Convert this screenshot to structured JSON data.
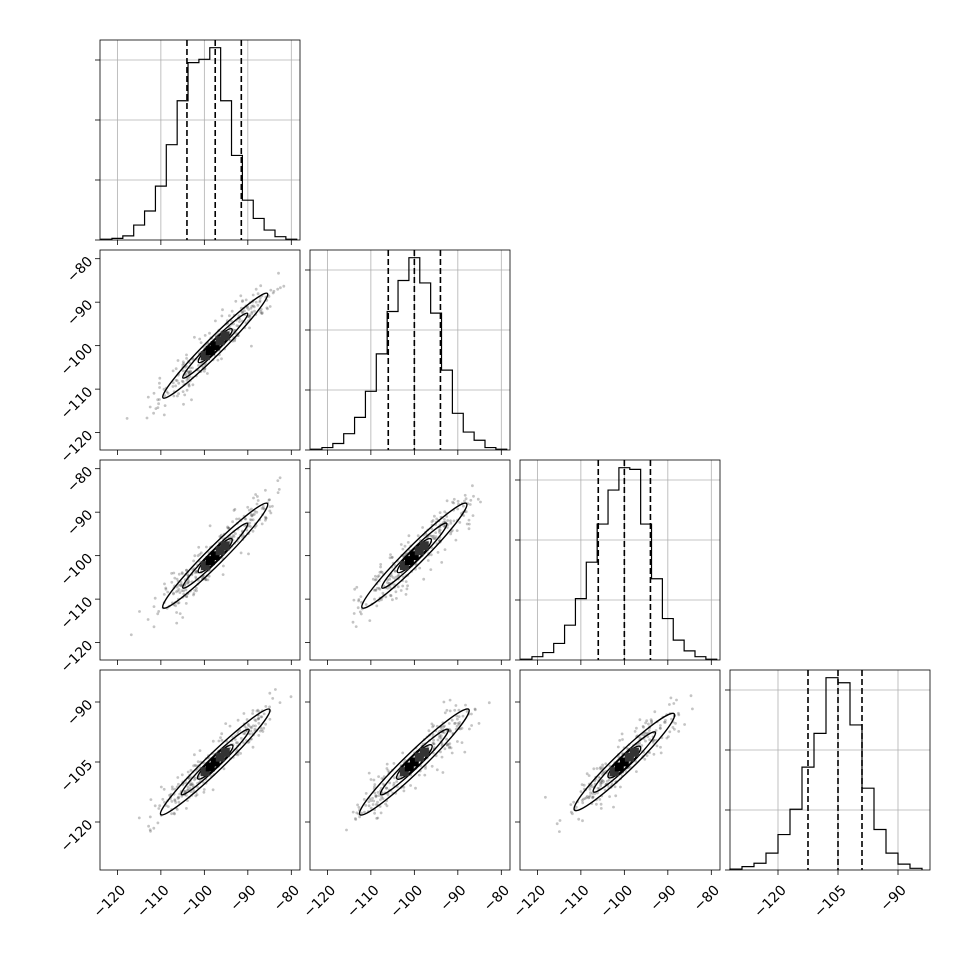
{
  "chart_data": {
    "type": "corner",
    "dimensions": 4,
    "grid": true,
    "diagonal": [
      {
        "range": [
          -124,
          -78
        ],
        "bins": [
          -122.5,
          -120,
          -117.5,
          -115,
          -112.5,
          -110,
          -107.5,
          -105,
          -102.5,
          -100,
          -97.5,
          -95,
          -92.5,
          -90,
          -87.5,
          -85,
          -82.5,
          -80
        ],
        "counts": [
          1,
          2,
          5,
          18,
          35,
          65,
          115,
          168,
          214,
          218,
          232,
          168,
          102,
          48,
          26,
          12,
          4,
          1
        ],
        "quantiles": [
          -104,
          -97.5,
          -91.5
        ],
        "xlim": [
          -124,
          -78
        ]
      },
      {
        "range": [
          -124,
          -78
        ],
        "bins": [
          -122.5,
          -120,
          -117.5,
          -115,
          -112.5,
          -110,
          -107.5,
          -105,
          -102.5,
          -100,
          -97.5,
          -95,
          -92.5,
          -90,
          -87.5,
          -85,
          -82.5,
          -80
        ],
        "counts": [
          1,
          3,
          8,
          20,
          40,
          72,
          118,
          170,
          208,
          236,
          205,
          168,
          98,
          45,
          22,
          12,
          3,
          1
        ],
        "quantiles": [
          -106,
          -100,
          -94
        ],
        "xlim": [
          -124,
          -78
        ]
      },
      {
        "range": [
          -124,
          -78
        ],
        "bins": [
          -122.5,
          -120,
          -117.5,
          -115,
          -112.5,
          -110,
          -107.5,
          -105,
          -102.5,
          -100,
          -97.5,
          -95,
          -92.5,
          -90,
          -87.5,
          -85,
          -82.5,
          -80
        ],
        "counts": [
          1,
          4,
          9,
          20,
          42,
          74,
          118,
          164,
          205,
          232,
          230,
          164,
          98,
          50,
          24,
          11,
          4,
          1
        ],
        "quantiles": [
          -106,
          -100,
          -94
        ],
        "xlim": [
          -124,
          -78
        ]
      },
      {
        "range": [
          -132,
          -82
        ],
        "bins": [
          -130.5,
          -127.5,
          -124.5,
          -121.5,
          -118.5,
          -115.5,
          -112.5,
          -109.5,
          -106.5,
          -103.5,
          -100.5,
          -97.5,
          -94.5,
          -91.5,
          -88.5,
          -85.5
        ],
        "counts": [
          1,
          4,
          8,
          20,
          42,
          72,
          122,
          162,
          228,
          222,
          172,
          97,
          48,
          20,
          7,
          2
        ],
        "quantiles": [
          -112.5,
          -105,
          -99
        ],
        "xlim": [
          -132,
          -82
        ]
      }
    ],
    "pairs": [
      {
        "row": 1,
        "col": 0,
        "mean": [
          -97.5,
          -100
        ],
        "slope": 1.0,
        "half_length": 12,
        "half_width": 1.9,
        "xlim": [
          -124,
          -78
        ],
        "ylim": [
          -124,
          -78
        ]
      },
      {
        "row": 2,
        "col": 0,
        "mean": [
          -97.5,
          -100
        ],
        "slope": 1.0,
        "half_length": 12,
        "half_width": 2.0,
        "xlim": [
          -124,
          -78
        ],
        "ylim": [
          -124,
          -78
        ]
      },
      {
        "row": 2,
        "col": 1,
        "mean": [
          -100,
          -100
        ],
        "slope": 1.0,
        "half_length": 12,
        "half_width": 2.1,
        "xlim": [
          -124,
          -78
        ],
        "ylim": [
          -124,
          -78
        ]
      },
      {
        "row": 3,
        "col": 0,
        "mean": [
          -97.5,
          -105
        ],
        "slope": 1.05,
        "half_length": 12,
        "half_width": 2.0,
        "xlim": [
          -124,
          -78
        ],
        "ylim": [
          -132,
          -82
        ]
      },
      {
        "row": 3,
        "col": 1,
        "mean": [
          -100,
          -105
        ],
        "slope": 1.05,
        "half_length": 12,
        "half_width": 2.2,
        "xlim": [
          -124,
          -78
        ],
        "ylim": [
          -132,
          -82
        ]
      },
      {
        "row": 3,
        "col": 2,
        "mean": [
          -100,
          -105
        ],
        "slope": 1.05,
        "half_length": 11,
        "half_width": 2.2,
        "xlim": [
          -124,
          -78
        ],
        "ylim": [
          -132,
          -82
        ]
      }
    ],
    "xticks": [
      [
        "−120",
        "−110",
        "−100",
        "−90",
        "−80"
      ],
      [
        "−120",
        "−110",
        "−100",
        "−90",
        "−80"
      ],
      [
        "−120",
        "−110",
        "−100",
        "−90",
        "−80"
      ],
      [
        "−120",
        "−105",
        "−90"
      ]
    ],
    "xtick_values": [
      [
        -120,
        -110,
        -100,
        -90,
        -80
      ],
      [
        -120,
        -110,
        -100,
        -90,
        -80
      ],
      [
        -120,
        -110,
        -100,
        -90,
        -80
      ],
      [
        -120,
        -105,
        -90
      ]
    ],
    "yticks": [
      [
        "−80",
        "−90",
        "−100",
        "−110",
        "−120"
      ],
      [
        "−80",
        "−90",
        "−100",
        "−110",
        "−120"
      ],
      [
        "−90",
        "−105",
        "−120"
      ]
    ],
    "ytick_values": [
      [
        -80,
        -90,
        -100,
        -110,
        -120
      ],
      [
        -80,
        -90,
        -100,
        -110,
        -120
      ],
      [
        -90,
        -105,
        -120
      ]
    ]
  }
}
